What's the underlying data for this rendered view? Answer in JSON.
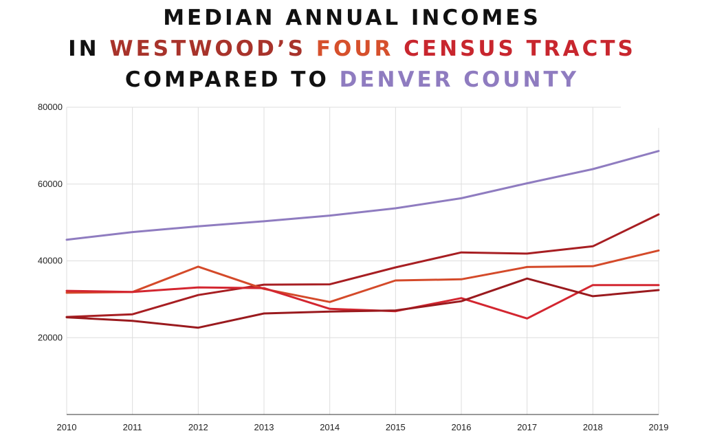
{
  "title": {
    "line1": "MEDIAN ANNUAL INCOMES",
    "line2_prefix": "IN ",
    "line2_westwoods": "WESTWOOD’S",
    "line2_four": "FOUR",
    "line2_census_tracts": "CENSUS TRACTS",
    "line3_prefix": "COMPARED TO ",
    "line3_denver": "DENVER COUNTY",
    "colors": {
      "westwoods": "#a8332b",
      "four": "#d6502c",
      "census_tracts": "#c8262e",
      "denver": "#8f7cc0"
    }
  },
  "chart_data": {
    "type": "line",
    "x": [
      2010,
      2011,
      2012,
      2013,
      2014,
      2015,
      2016,
      2017,
      2018,
      2019
    ],
    "x_tick_labels": [
      "2010",
      "2011",
      "2012",
      "2013",
      "2014",
      "2015",
      "2016",
      "2017",
      "2018",
      "2019"
    ],
    "y_tick_labels": [
      "20000",
      "40000",
      "60000",
      "80000"
    ],
    "y_ticks": [
      20000,
      40000,
      60000,
      80000
    ],
    "ylim": [
      0,
      80000
    ],
    "grid": true,
    "series": [
      {
        "color": "#8f7cc0",
        "values": [
          45500,
          47500,
          49000,
          50300,
          51800,
          53700,
          56300,
          60200,
          63900,
          68600
        ]
      },
      {
        "color": "#a71e22",
        "values": [
          25400,
          26100,
          31100,
          33800,
          33900,
          38300,
          42200,
          41900,
          43800,
          52100
        ]
      },
      {
        "color": "#d44a2a",
        "values": [
          31700,
          31900,
          38500,
          32700,
          29300,
          34900,
          35200,
          38400,
          38600,
          42700
        ]
      },
      {
        "color": "#d32630",
        "values": [
          32200,
          31900,
          33100,
          32900,
          27500,
          26900,
          30300,
          25000,
          33700,
          33700
        ]
      },
      {
        "color": "#9a1a1e",
        "values": [
          25300,
          24400,
          22600,
          26300,
          26800,
          27100,
          29500,
          35400,
          30800,
          32400
        ]
      }
    ]
  }
}
